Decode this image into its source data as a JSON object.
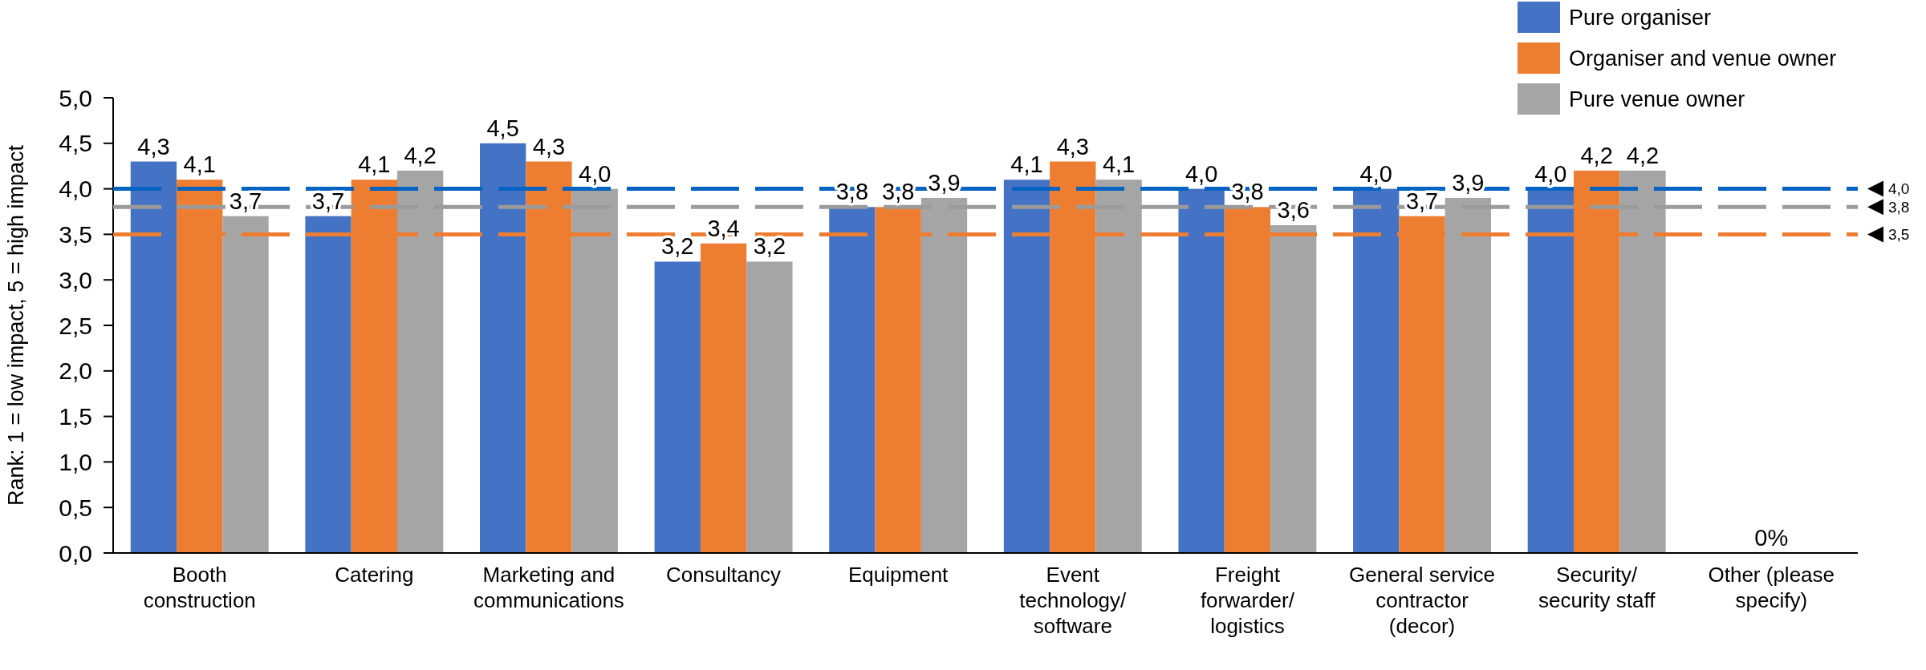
{
  "chart_data": {
    "type": "bar",
    "ylabel": "Rank: 1 = low impact, 5 = high impact",
    "categories": [
      "Booth construction",
      "Catering",
      "Marketing and communications",
      "Consultancy",
      "Equipment",
      "Event technology/software",
      "Freight forwarder/logistics",
      "General service contractor (decor)",
      "Security/security staff",
      "Other (please specify)"
    ],
    "series": [
      {
        "name": "Pure organiser",
        "color": "#4472c4",
        "values": [
          4.3,
          3.7,
          4.5,
          3.2,
          3.8,
          4.1,
          4.0,
          4.0,
          4.0,
          null
        ],
        "value_labels": [
          "4,3",
          "3,7",
          "4,5",
          "3,2",
          "3,8",
          "4,1",
          "4,0",
          "4,0",
          "4,0",
          null
        ]
      },
      {
        "name": "Organiser and venue owner",
        "color": "#ed7d31",
        "values": [
          4.1,
          4.1,
          4.3,
          3.4,
          3.8,
          4.3,
          3.8,
          3.7,
          4.2,
          0
        ],
        "value_labels": [
          "4,1",
          "4,1",
          "4,3",
          "3,4",
          "3,8",
          "4,3",
          "3,8",
          "3,7",
          "4,2",
          "0%"
        ]
      },
      {
        "name": "Pure venue owner",
        "color": "#a5a5a5",
        "values": [
          3.7,
          4.2,
          4.0,
          3.2,
          3.9,
          4.1,
          3.6,
          3.9,
          4.2,
          null
        ],
        "value_labels": [
          "3,7",
          "4,2",
          "4,0",
          "3,2",
          "3,9",
          "4,1",
          "3,6",
          "3,9",
          "4,2",
          null
        ]
      }
    ],
    "ylim": [
      0,
      5
    ],
    "yticks": [
      {
        "value": 0,
        "label": "0,0"
      },
      {
        "value": 0.5,
        "label": "0,5"
      },
      {
        "value": 1,
        "label": "1,0"
      },
      {
        "value": 1.5,
        "label": "1,5"
      },
      {
        "value": 2,
        "label": "2,0"
      },
      {
        "value": 2.5,
        "label": "2,5"
      },
      {
        "value": 3,
        "label": "3,0"
      },
      {
        "value": 3.5,
        "label": "3,5"
      },
      {
        "value": 4,
        "label": "4,0"
      },
      {
        "value": 4.5,
        "label": "4,5"
      },
      {
        "value": 5,
        "label": "5,0"
      }
    ],
    "ref_lines": [
      {
        "axis": "y",
        "value": 4.0,
        "label": "4,0",
        "color": "#0563c1",
        "line_style": "dashed"
      },
      {
        "axis": "y",
        "value": 3.8,
        "label": "3,8",
        "color": "#9b9b9b",
        "line_style": "dashed"
      },
      {
        "axis": "y",
        "value": 3.5,
        "label": "3,5",
        "color": "#ed7d31",
        "line_style": "dashed"
      }
    ],
    "legend": "top right"
  }
}
